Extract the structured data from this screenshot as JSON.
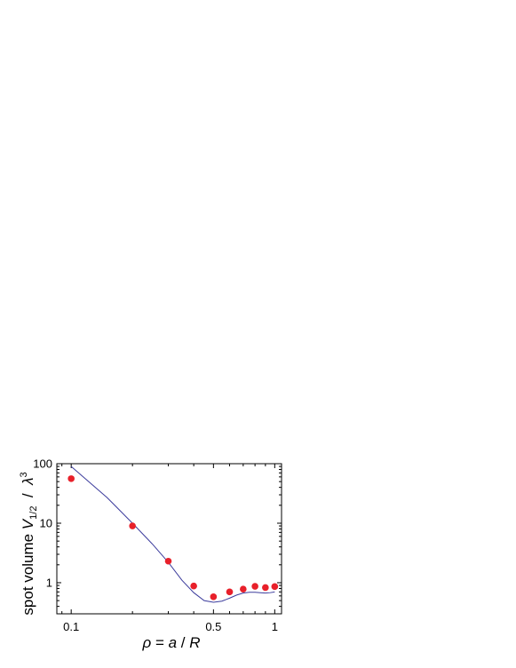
{
  "chart_data": {
    "type": "scatter",
    "xscale": "log",
    "yscale": "log",
    "xlim": [
      0.085,
      1.08
    ],
    "ylim": [
      0.3,
      100
    ],
    "xticks": [
      0.1,
      0.5,
      1
    ],
    "xtick_labels": [
      "0.1",
      "0.5",
      "1"
    ],
    "yticks": [
      1,
      10,
      100
    ],
    "ytick_labels": [
      "1",
      "10",
      "100"
    ],
    "xlabel": {
      "rho": "ρ",
      "eq": " = ",
      "a": "a",
      "slash": " / ",
      "R": "R"
    },
    "ylabel": {
      "prefix": "spot volume ",
      "V": "V",
      "sub": "1/2",
      "slash": "  /  ",
      "lambda": "λ",
      "sup": "3"
    },
    "grid": false,
    "legend": "none",
    "series": [
      {
        "kind": "points",
        "color": "#e8202a",
        "x": [
          0.1,
          0.2,
          0.3,
          0.4,
          0.5,
          0.6,
          0.7,
          0.8,
          0.9,
          1.0
        ],
        "y": [
          56,
          9,
          2.3,
          0.88,
          0.58,
          0.7,
          0.78,
          0.87,
          0.83,
          0.86
        ]
      },
      {
        "kind": "line",
        "color": "#3b3b9c",
        "x": [
          0.1,
          0.15,
          0.2,
          0.25,
          0.3,
          0.35,
          0.4,
          0.45,
          0.5,
          0.55,
          0.6,
          0.65,
          0.7,
          0.75,
          0.8,
          0.85,
          0.9,
          0.95,
          1.0
        ],
        "y": [
          90,
          27,
          10,
          4.5,
          2.2,
          1.1,
          0.68,
          0.5,
          0.47,
          0.49,
          0.55,
          0.62,
          0.67,
          0.69,
          0.69,
          0.68,
          0.67,
          0.68,
          0.7
        ]
      }
    ]
  }
}
